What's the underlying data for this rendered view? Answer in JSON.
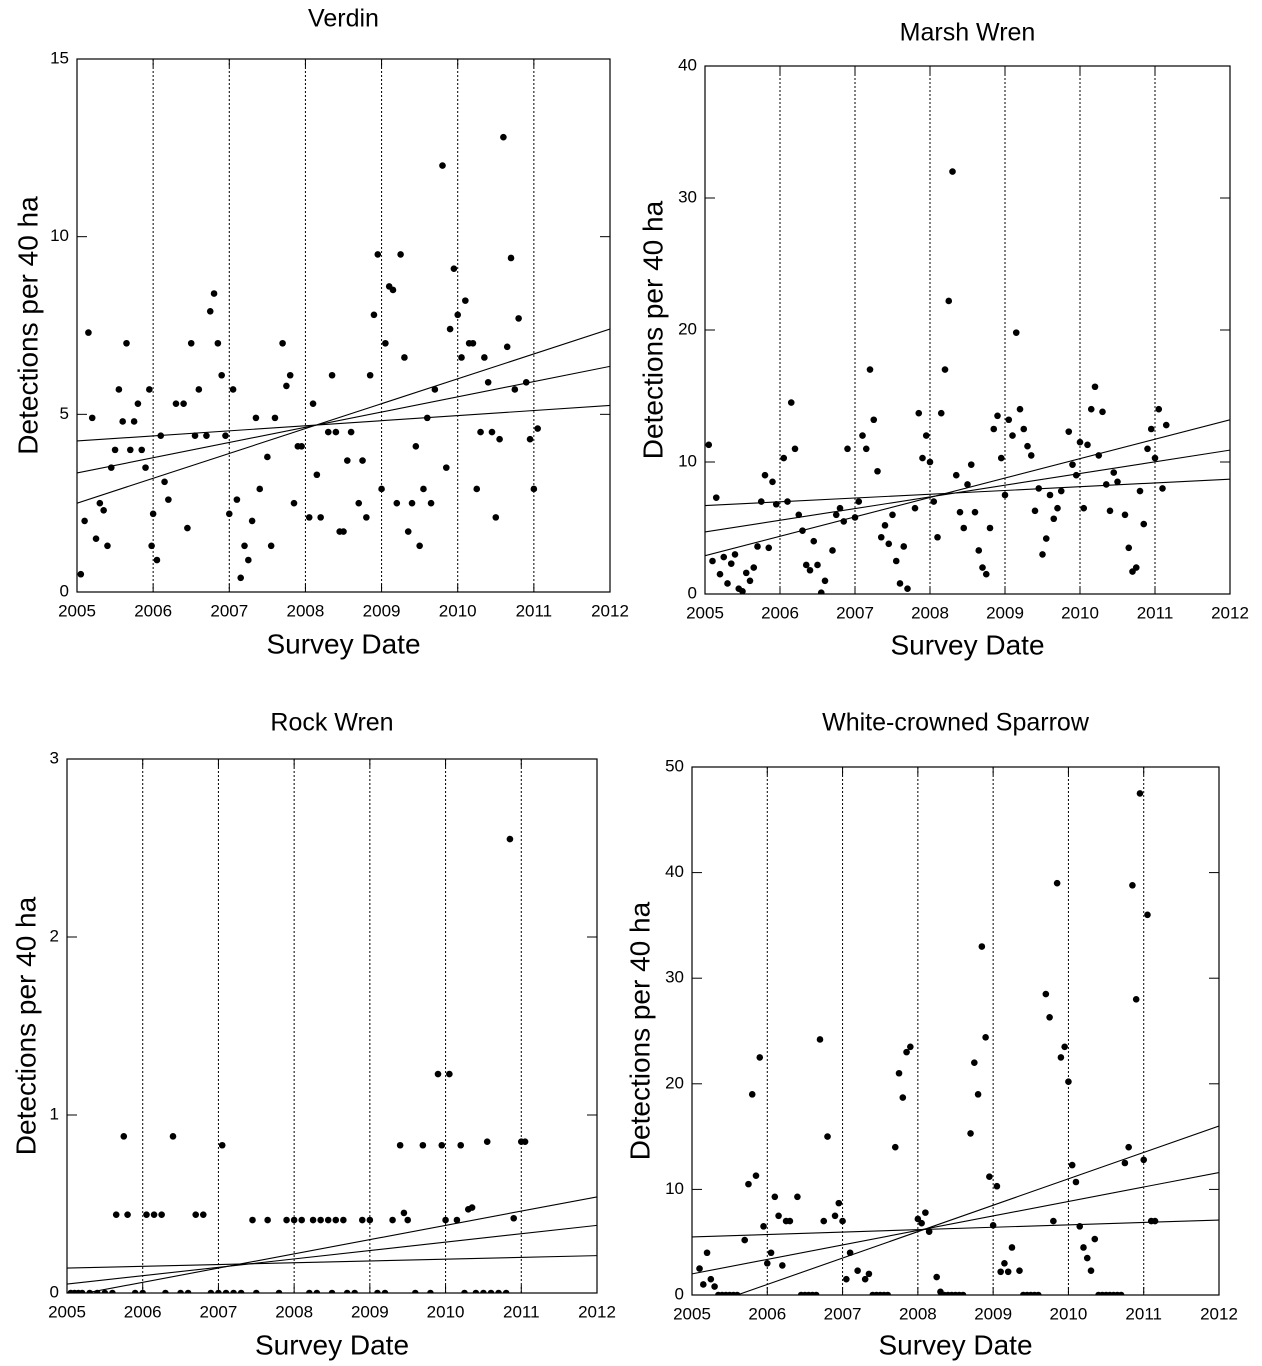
{
  "chart_data": [
    {
      "type": "scatter",
      "title": "Verdin",
      "x_label": "Survey Date",
      "y_label": "Detections per 40 ha",
      "color": "#000000",
      "grid": "x",
      "xlim": [
        2005,
        2012
      ],
      "xticks": [
        2005,
        2006,
        2007,
        2008,
        2009,
        2010,
        2011,
        2012
      ],
      "ylim": [
        0,
        15
      ],
      "yticks": [
        0,
        5,
        10,
        15
      ],
      "x": [
        2005.05,
        2005.1,
        2005.15,
        2005.2,
        2005.25,
        2005.3,
        2005.35,
        2005.4,
        2005.45,
        2005.5,
        2005.55,
        2005.6,
        2005.65,
        2005.7,
        2005.75,
        2005.8,
        2005.85,
        2005.9,
        2005.95,
        2005.98,
        2006.0,
        2006.05,
        2006.1,
        2006.15,
        2006.2,
        2006.3,
        2006.4,
        2006.45,
        2006.5,
        2006.55,
        2006.6,
        2006.7,
        2006.75,
        2006.8,
        2006.85,
        2006.9,
        2006.95,
        2007.0,
        2007.05,
        2007.1,
        2007.15,
        2007.2,
        2007.25,
        2007.3,
        2007.35,
        2007.4,
        2007.5,
        2007.55,
        2007.6,
        2007.7,
        2007.75,
        2007.8,
        2007.85,
        2007.9,
        2007.95,
        2008.05,
        2008.1,
        2008.15,
        2008.2,
        2008.3,
        2008.35,
        2008.4,
        2008.45,
        2008.5,
        2008.55,
        2008.6,
        2008.7,
        2008.75,
        2008.8,
        2008.85,
        2008.9,
        2008.95,
        2009.0,
        2009.05,
        2009.1,
        2009.15,
        2009.2,
        2009.25,
        2009.3,
        2009.35,
        2009.4,
        2009.45,
        2009.5,
        2009.55,
        2009.6,
        2009.65,
        2009.7,
        2009.8,
        2009.85,
        2009.9,
        2009.95,
        2010.0,
        2010.05,
        2010.1,
        2010.15,
        2010.2,
        2010.25,
        2010.3,
        2010.35,
        2010.4,
        2010.45,
        2010.5,
        2010.55,
        2010.6,
        2010.65,
        2010.7,
        2010.75,
        2010.8,
        2010.9,
        2010.95,
        2011.0,
        2011.05
      ],
      "values": [
        0.5,
        2.0,
        7.3,
        4.9,
        1.5,
        2.5,
        2.3,
        1.3,
        3.5,
        4.0,
        5.7,
        4.8,
        7.0,
        4.0,
        4.8,
        5.3,
        4.0,
        3.5,
        5.7,
        1.3,
        2.2,
        0.9,
        4.4,
        3.1,
        2.6,
        5.3,
        5.3,
        1.8,
        7.0,
        4.4,
        5.7,
        4.4,
        7.9,
        8.4,
        7.0,
        6.1,
        4.4,
        2.2,
        5.7,
        2.6,
        0.4,
        1.3,
        0.9,
        2.0,
        4.9,
        2.9,
        3.8,
        1.3,
        4.9,
        7.0,
        5.8,
        6.1,
        2.5,
        4.1,
        4.1,
        2.1,
        5.3,
        3.3,
        2.1,
        4.5,
        6.1,
        4.5,
        1.7,
        1.7,
        3.7,
        4.5,
        2.5,
        3.7,
        2.1,
        6.1,
        7.8,
        9.5,
        2.9,
        7.0,
        8.6,
        8.5,
        2.5,
        9.5,
        6.6,
        1.7,
        2.5,
        4.1,
        1.3,
        2.9,
        4.9,
        2.5,
        5.7,
        12.0,
        3.5,
        7.4,
        9.1,
        7.8,
        6.6,
        8.2,
        7.0,
        7.0,
        2.9,
        4.5,
        6.6,
        5.9,
        4.5,
        2.1,
        4.3,
        12.8,
        6.9,
        9.4,
        5.7,
        7.7,
        5.9,
        4.3,
        2.9,
        4.6
      ],
      "lines": [
        {
          "x": [
            2005,
            2012
          ],
          "values": [
            4.25,
            5.25
          ]
        },
        {
          "x": [
            2005,
            2012
          ],
          "values": [
            3.35,
            6.35
          ]
        },
        {
          "x": [
            2005,
            2012
          ],
          "values": [
            2.5,
            7.4
          ]
        }
      ]
    },
    {
      "type": "scatter",
      "title": "Marsh Wren",
      "x_label": "Survey Date",
      "y_label": "Detections per 40 ha",
      "color": "#000000",
      "grid": "x",
      "xlim": [
        2005,
        2012
      ],
      "xticks": [
        2005,
        2006,
        2007,
        2008,
        2009,
        2010,
        2011,
        2012
      ],
      "ylim": [
        0,
        40
      ],
      "yticks": [
        0,
        10,
        20,
        30,
        40
      ],
      "x": [
        2005.05,
        2005.1,
        2005.15,
        2005.2,
        2005.25,
        2005.3,
        2005.35,
        2005.4,
        2005.45,
        2005.5,
        2005.55,
        2005.6,
        2005.65,
        2005.7,
        2005.75,
        2005.8,
        2005.85,
        2005.9,
        2005.95,
        2006.05,
        2006.1,
        2006.15,
        2006.2,
        2006.25,
        2006.3,
        2006.35,
        2006.4,
        2006.45,
        2006.5,
        2006.55,
        2006.6,
        2006.7,
        2006.75,
        2006.8,
        2006.85,
        2006.9,
        2007.0,
        2007.05,
        2007.1,
        2007.15,
        2007.2,
        2007.25,
        2007.3,
        2007.35,
        2007.4,
        2007.45,
        2007.5,
        2007.55,
        2007.6,
        2007.65,
        2007.7,
        2007.8,
        2007.85,
        2007.9,
        2007.95,
        2008.0,
        2008.05,
        2008.1,
        2008.15,
        2008.2,
        2008.25,
        2008.3,
        2008.35,
        2008.4,
        2008.45,
        2008.5,
        2008.55,
        2008.6,
        2008.65,
        2008.7,
        2008.75,
        2008.8,
        2008.85,
        2008.9,
        2008.95,
        2009.0,
        2009.05,
        2009.1,
        2009.15,
        2009.2,
        2009.25,
        2009.3,
        2009.35,
        2009.4,
        2009.45,
        2009.5,
        2009.55,
        2009.6,
        2009.65,
        2009.7,
        2009.75,
        2009.85,
        2009.9,
        2009.95,
        2010.0,
        2010.05,
        2010.1,
        2010.15,
        2010.2,
        2010.25,
        2010.3,
        2010.35,
        2010.4,
        2010.45,
        2010.5,
        2010.6,
        2010.65,
        2010.7,
        2010.75,
        2010.8,
        2010.85,
        2010.9,
        2010.95,
        2011.0,
        2011.05,
        2011.1,
        2011.15
      ],
      "values": [
        11.3,
        2.5,
        7.3,
        1.5,
        2.8,
        0.8,
        2.3,
        3.0,
        0.4,
        0.2,
        1.6,
        1.0,
        2.0,
        3.6,
        7.0,
        9.0,
        3.5,
        8.5,
        6.8,
        10.3,
        7.0,
        14.5,
        11.0,
        6.0,
        4.8,
        2.2,
        1.8,
        4.0,
        2.2,
        0.1,
        1.0,
        3.3,
        6.0,
        6.5,
        5.5,
        11.0,
        5.8,
        7.0,
        12.0,
        11.0,
        17.0,
        13.2,
        9.3,
        4.3,
        5.2,
        3.8,
        6.0,
        2.5,
        0.8,
        3.6,
        0.4,
        6.5,
        13.7,
        10.3,
        12.0,
        10.0,
        7.0,
        4.3,
        13.7,
        17.0,
        22.2,
        32.0,
        9.0,
        6.2,
        5.0,
        8.3,
        9.8,
        6.2,
        3.3,
        2.0,
        1.5,
        5.0,
        12.5,
        13.5,
        10.3,
        7.5,
        13.2,
        12.0,
        19.8,
        14.0,
        12.5,
        11.2,
        10.5,
        6.3,
        8.0,
        3.0,
        4.2,
        7.5,
        5.7,
        6.5,
        7.8,
        12.3,
        9.8,
        9.0,
        11.5,
        6.5,
        11.3,
        14.0,
        15.7,
        10.5,
        13.8,
        8.3,
        6.3,
        9.2,
        8.5,
        6.0,
        3.5,
        1.7,
        2.0,
        7.8,
        5.3,
        11.0,
        12.5,
        10.3,
        14.0,
        8.0,
        12.8
      ],
      "lines": [
        {
          "x": [
            2005,
            2012
          ],
          "values": [
            6.7,
            8.7
          ]
        },
        {
          "x": [
            2005,
            2012
          ],
          "values": [
            4.7,
            10.9
          ]
        },
        {
          "x": [
            2005,
            2012
          ],
          "values": [
            2.9,
            13.2
          ]
        }
      ]
    },
    {
      "type": "scatter",
      "title": "Rock Wren",
      "x_label": "Survey Date",
      "y_label": "Detections per 40 ha",
      "color": "#000000",
      "grid": "x",
      "xlim": [
        2005,
        2012
      ],
      "xticks": [
        2005,
        2006,
        2007,
        2008,
        2009,
        2010,
        2011,
        2012
      ],
      "ylim": [
        0,
        3
      ],
      "yticks": [
        0,
        1,
        2,
        3
      ],
      "x": [
        2005.65,
        2005.75,
        2005.8,
        2006.05,
        2006.15,
        2006.25,
        2006.4,
        2006.7,
        2006.8,
        2007.05,
        2007.45,
        2007.65,
        2007.9,
        2008.0,
        2008.1,
        2008.25,
        2008.35,
        2008.45,
        2008.55,
        2008.65,
        2008.9,
        2009.0,
        2009.3,
        2009.45,
        2009.5,
        2009.4,
        2009.7,
        2009.9,
        2010.0,
        2010.05,
        2009.95,
        2010.15,
        2010.2,
        2010.3,
        2010.35,
        2010.55,
        2010.85,
        2010.9,
        2011.0,
        2011.05,
        2005.05,
        2005.1,
        2005.15,
        2005.2,
        2005.3,
        2005.4,
        2005.5,
        2005.6,
        2005.9,
        2006.0,
        2006.3,
        2006.5,
        2006.6,
        2006.9,
        2007.0,
        2007.1,
        2007.2,
        2007.3,
        2007.5,
        2007.8,
        2008.2,
        2008.3,
        2008.5,
        2008.7,
        2008.8,
        2009.1,
        2009.2,
        2009.6,
        2009.8,
        2010.25,
        2010.4,
        2010.5,
        2010.6,
        2010.7,
        2010.8
      ],
      "values": [
        0.44,
        0.88,
        0.44,
        0.44,
        0.44,
        0.44,
        0.88,
        0.44,
        0.44,
        0.83,
        0.41,
        0.41,
        0.41,
        0.41,
        0.41,
        0.41,
        0.41,
        0.41,
        0.41,
        0.41,
        0.41,
        0.41,
        0.41,
        0.45,
        0.41,
        0.83,
        0.83,
        1.23,
        0.41,
        1.23,
        0.83,
        0.41,
        0.83,
        0.47,
        0.48,
        0.85,
        2.55,
        0.42,
        0.85,
        0.85,
        0,
        0,
        0,
        0,
        0,
        0,
        0,
        0,
        0,
        0,
        0,
        0,
        0,
        0,
        0,
        0,
        0,
        0,
        0,
        0,
        0,
        0,
        0,
        0,
        0,
        0,
        0,
        0,
        0,
        0,
        0,
        0,
        0,
        0,
        0
      ],
      "lines": [
        {
          "x": [
            2005,
            2012
          ],
          "values": [
            0.14,
            0.21
          ]
        },
        {
          "x": [
            2005,
            2012
          ],
          "values": [
            0.05,
            0.38
          ]
        },
        {
          "x": [
            2005,
            2012
          ],
          "values": [
            -0.02,
            0.54
          ]
        }
      ]
    },
    {
      "type": "scatter",
      "title": "White-crowned Sparrow",
      "x_label": "Survey Date",
      "y_label": "Detections per 40 ha",
      "color": "#000000",
      "grid": "x",
      "xlim": [
        2005,
        2012
      ],
      "xticks": [
        2005,
        2006,
        2007,
        2008,
        2009,
        2010,
        2011,
        2012
      ],
      "ylim": [
        0,
        50
      ],
      "yticks": [
        0,
        10,
        20,
        30,
        40,
        50
      ],
      "x": [
        2005.1,
        2005.15,
        2005.2,
        2005.25,
        2005.3,
        2005.7,
        2005.75,
        2005.8,
        2005.85,
        2005.9,
        2005.95,
        2006.0,
        2006.05,
        2006.1,
        2006.15,
        2006.2,
        2006.25,
        2006.3,
        2006.4,
        2006.7,
        2006.75,
        2006.8,
        2006.9,
        2006.95,
        2007.0,
        2007.05,
        2007.1,
        2007.2,
        2007.3,
        2007.35,
        2007.7,
        2007.75,
        2007.8,
        2007.85,
        2007.9,
        2008.0,
        2008.05,
        2008.1,
        2008.15,
        2008.25,
        2008.3,
        2008.7,
        2008.75,
        2008.8,
        2008.85,
        2008.9,
        2008.95,
        2009.0,
        2009.05,
        2009.1,
        2009.15,
        2009.2,
        2009.25,
        2009.35,
        2009.7,
        2009.75,
        2009.8,
        2009.85,
        2009.9,
        2009.95,
        2010.0,
        2010.05,
        2010.1,
        2010.15,
        2010.2,
        2010.25,
        2010.3,
        2010.35,
        2010.75,
        2010.8,
        2010.85,
        2010.9,
        2010.95,
        2011.0,
        2011.05,
        2011.1,
        2011.15,
        2005.35,
        2005.4,
        2005.45,
        2005.5,
        2005.55,
        2005.6,
        2006.45,
        2006.5,
        2006.55,
        2006.6,
        2006.65,
        2007.4,
        2007.45,
        2007.5,
        2007.55,
        2007.6,
        2008.35,
        2008.4,
        2008.45,
        2008.5,
        2008.55,
        2008.6,
        2009.4,
        2009.45,
        2009.5,
        2009.55,
        2009.6,
        2010.4,
        2010.45,
        2010.5,
        2010.55,
        2010.6,
        2010.65,
        2010.7
      ],
      "values": [
        2.5,
        1.0,
        4.0,
        1.5,
        0.8,
        5.2,
        10.5,
        19.0,
        11.3,
        22.5,
        6.5,
        3.0,
        4.0,
        9.3,
        7.5,
        2.8,
        7.0,
        7.0,
        9.3,
        24.2,
        7.0,
        15.0,
        7.5,
        8.7,
        7.0,
        1.5,
        4.0,
        2.3,
        1.5,
        2.0,
        14.0,
        21.0,
        18.7,
        23.0,
        23.5,
        7.2,
        6.8,
        7.8,
        6.0,
        1.7,
        0.3,
        15.3,
        22.0,
        19.0,
        33.0,
        24.4,
        11.2,
        6.6,
        10.3,
        2.2,
        3.0,
        2.2,
        4.5,
        2.3,
        28.5,
        26.3,
        7.0,
        39.0,
        22.5,
        23.5,
        20.2,
        12.3,
        10.7,
        6.5,
        4.5,
        3.5,
        2.3,
        5.3,
        12.5,
        14.0,
        38.8,
        28.0,
        47.5,
        12.8,
        36.0,
        7.0,
        7.0,
        0,
        0,
        0,
        0,
        0,
        0,
        0,
        0,
        0,
        0,
        0,
        0,
        0,
        0,
        0,
        0,
        0,
        0,
        0,
        0,
        0,
        0,
        0,
        0,
        0,
        0,
        0,
        0,
        0,
        0,
        0,
        0,
        0,
        0
      ],
      "lines": [
        {
          "x": [
            2005,
            2012
          ],
          "values": [
            5.5,
            7.1
          ]
        },
        {
          "x": [
            2005,
            2012
          ],
          "values": [
            2.0,
            11.6
          ]
        },
        {
          "x": [
            2005,
            2012
          ],
          "values": [
            -1.5,
            16.0
          ]
        }
      ]
    }
  ]
}
